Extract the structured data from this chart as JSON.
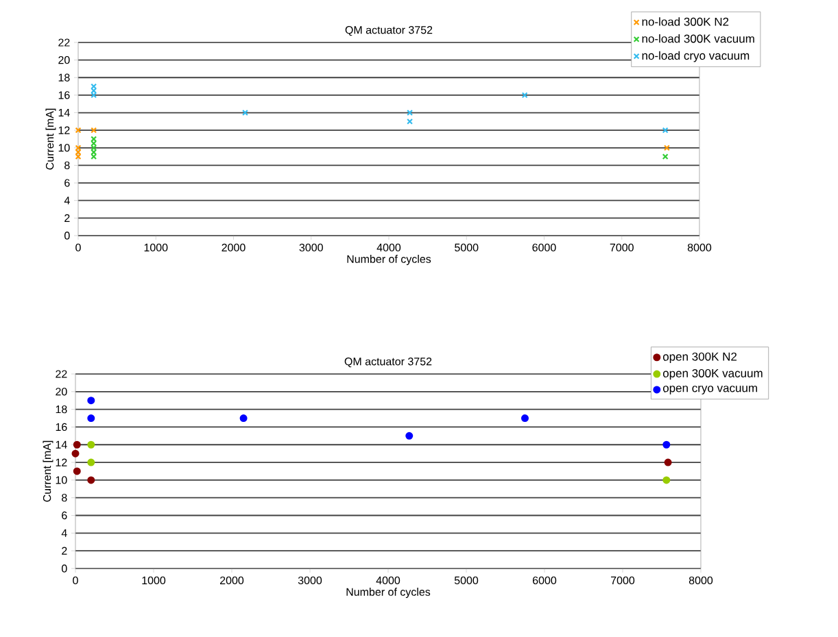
{
  "chart_data": [
    {
      "type": "scatter",
      "title": "QM actuator 3752",
      "xlabel": "Number of cycles",
      "ylabel": "Current [mA]",
      "xlim": [
        0,
        8000
      ],
      "ylim": [
        0,
        22
      ],
      "xticks": [
        0,
        1000,
        2000,
        3000,
        4000,
        5000,
        6000,
        7000,
        8000
      ],
      "yticks": [
        0,
        2,
        4,
        6,
        8,
        10,
        12,
        14,
        16,
        18,
        20,
        22
      ],
      "grid": "y",
      "legend": "top right",
      "marker": "cross",
      "series": [
        {
          "name": "no-load 300K N2",
          "color": "#ff9900",
          "x": [
            0,
            0,
            0,
            0,
            200,
            7580
          ],
          "values": [
            12,
            10,
            9.5,
            9,
            12,
            10
          ]
        },
        {
          "name": "no-load 300K vacuum",
          "color": "#33cc33",
          "x": [
            200,
            200,
            200,
            200,
            200,
            7560
          ],
          "values": [
            11,
            10.5,
            10,
            9.5,
            9,
            9
          ]
        },
        {
          "name": "no-load cryo vacuum",
          "color": "#33bbee",
          "x": [
            200,
            200,
            200,
            2150,
            4270,
            4270,
            5750,
            7560
          ],
          "values": [
            17,
            16.5,
            16,
            14,
            14,
            13,
            16,
            12
          ]
        }
      ]
    },
    {
      "type": "scatter",
      "title": "QM actuator 3752",
      "xlabel": "Number of cycles",
      "ylabel": "Current [mA]",
      "xlim": [
        0,
        8000
      ],
      "ylim": [
        0,
        22
      ],
      "xticks": [
        0,
        1000,
        2000,
        3000,
        4000,
        5000,
        6000,
        7000,
        8000
      ],
      "yticks": [
        0,
        2,
        4,
        6,
        8,
        10,
        12,
        14,
        16,
        18,
        20,
        22
      ],
      "grid": "y",
      "legend": "top right",
      "marker": "circle",
      "series": [
        {
          "name": "open 300K N2",
          "color": "#880000",
          "x": [
            20,
            0,
            20,
            200,
            7580
          ],
          "values": [
            14,
            13,
            11,
            10,
            12
          ]
        },
        {
          "name": "open 300K vacuum",
          "color": "#99cc00",
          "x": [
            200,
            200,
            7560
          ],
          "values": [
            14,
            12,
            10
          ]
        },
        {
          "name": "open cryo vacuum",
          "color": "#0000ff",
          "x": [
            200,
            200,
            2150,
            4270,
            5750,
            7560
          ],
          "values": [
            19,
            17,
            17,
            15,
            17,
            14
          ]
        }
      ]
    }
  ]
}
